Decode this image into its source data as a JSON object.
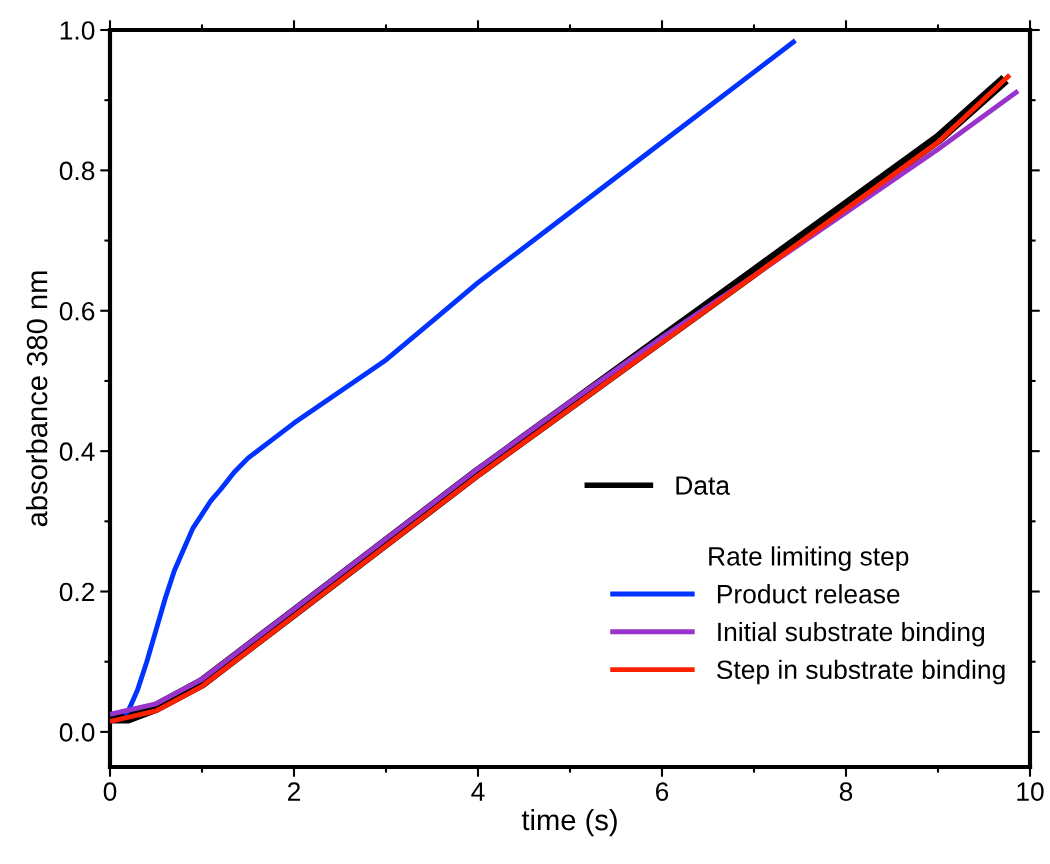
{
  "chart_data": {
    "type": "line",
    "xlabel": "time (s)",
    "ylabel": "absorbance 380 nm",
    "legend_title": "Rate limiting step",
    "xlim": [
      0,
      10
    ],
    "ylim": [
      -0.05,
      1.0
    ],
    "xticks": [
      0,
      2,
      4,
      6,
      8,
      10
    ],
    "yticks": [
      {
        "value": 0,
        "label": "0.0"
      },
      0.2,
      0.4,
      0.6,
      0.8,
      {
        "value": 1,
        "label": "1.0"
      }
    ],
    "grid": false,
    "legend": "bottom right",
    "series": [
      {
        "name": "Data",
        "color": "#000000",
        "x": [
          0,
          0.2,
          0.5,
          1,
          1.5,
          2,
          3,
          4,
          5,
          6,
          7,
          8,
          9,
          9.73
        ],
        "values": [
          0.02,
          0.02,
          0.035,
          0.07,
          0.12,
          0.17,
          0.27,
          0.37,
          0.465,
          0.56,
          0.655,
          0.75,
          0.845,
          0.93
        ]
      },
      {
        "name": "Product release",
        "color": "#0033ff",
        "x": [
          0.15,
          0.2,
          0.3,
          0.4,
          0.5,
          0.6,
          0.7,
          0.8,
          0.9,
          1.0,
          1.1,
          1.2,
          1.35,
          1.5,
          1.75,
          2,
          2.5,
          3,
          3.5,
          4,
          5,
          6,
          7,
          7.45
        ],
        "values": [
          0.025,
          0.03,
          0.06,
          0.1,
          0.145,
          0.19,
          0.23,
          0.26,
          0.29,
          0.31,
          0.33,
          0.345,
          0.37,
          0.39,
          0.415,
          0.44,
          0.485,
          0.53,
          0.585,
          0.64,
          0.74,
          0.84,
          0.94,
          0.985
        ]
      },
      {
        "name": "Initial substrate binding",
        "color": "#9933cc",
        "x": [
          0,
          0.5,
          1,
          2,
          3,
          4,
          5,
          6,
          7,
          8,
          9,
          9.87
        ],
        "values": [
          0.025,
          0.04,
          0.075,
          0.175,
          0.275,
          0.375,
          0.47,
          0.562,
          0.65,
          0.74,
          0.83,
          0.913
        ]
      },
      {
        "name": "Step in substrate binding",
        "color": "#ff2200",
        "x": [
          0,
          0.5,
          1,
          2,
          3,
          4,
          5,
          6,
          7,
          8,
          9,
          9.78
        ],
        "values": [
          0.015,
          0.03,
          0.065,
          0.165,
          0.265,
          0.365,
          0.46,
          0.555,
          0.65,
          0.745,
          0.84,
          0.936
        ]
      }
    ]
  }
}
